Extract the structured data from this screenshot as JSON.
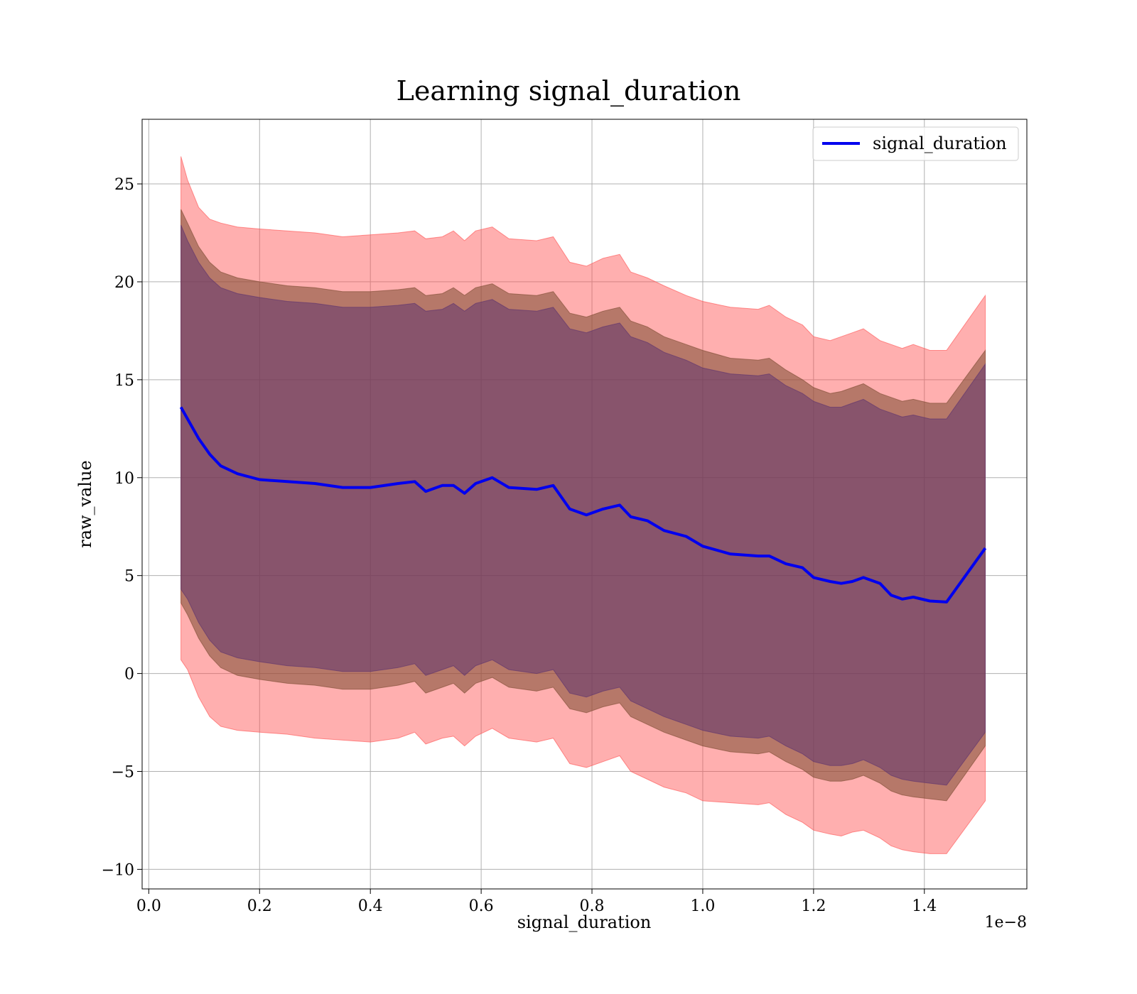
{
  "chart_data": {
    "type": "line",
    "title": "Learning signal_duration",
    "xlabel": "signal_duration",
    "ylabel": "raw_value",
    "x_offset_label": "1e−8",
    "xlim": [
      -0.012,
      1.585
    ],
    "ylim": [
      -11,
      28.3
    ],
    "x_ticks": [
      0.0,
      0.2,
      0.4,
      0.6,
      0.8,
      1.0,
      1.2,
      1.4
    ],
    "x_tick_labels": [
      "0.0",
      "0.2",
      "0.4",
      "0.6",
      "0.8",
      "1.0",
      "1.2",
      "1.4"
    ],
    "y_ticks": [
      -10,
      -5,
      0,
      5,
      10,
      15,
      20,
      25
    ],
    "y_tick_labels": [
      "−10",
      "−5",
      "0",
      "5",
      "10",
      "15",
      "20",
      "25"
    ],
    "grid": true,
    "legend": {
      "placement": "top-right"
    },
    "x": [
      0.058,
      0.07,
      0.09,
      0.11,
      0.13,
      0.16,
      0.2,
      0.25,
      0.3,
      0.35,
      0.4,
      0.45,
      0.48,
      0.5,
      0.53,
      0.55,
      0.57,
      0.59,
      0.62,
      0.65,
      0.7,
      0.73,
      0.76,
      0.79,
      0.82,
      0.85,
      0.87,
      0.9,
      0.93,
      0.97,
      1.0,
      1.05,
      1.1,
      1.12,
      1.15,
      1.18,
      1.2,
      1.23,
      1.25,
      1.27,
      1.29,
      1.32,
      1.34,
      1.36,
      1.38,
      1.41,
      1.44,
      1.51
    ],
    "series": [
      {
        "name": "signal_duration",
        "color": "#0000ee",
        "values": [
          13.6,
          13.0,
          12.0,
          11.2,
          10.6,
          10.2,
          9.9,
          9.8,
          9.7,
          9.5,
          9.5,
          9.7,
          9.8,
          9.3,
          9.6,
          9.6,
          9.2,
          9.7,
          10.0,
          9.5,
          9.4,
          9.6,
          8.4,
          8.1,
          8.4,
          8.6,
          8.0,
          7.8,
          7.3,
          7.0,
          6.5,
          6.1,
          6.0,
          6.0,
          5.6,
          5.4,
          4.9,
          4.7,
          4.6,
          4.7,
          4.9,
          4.6,
          4.0,
          3.8,
          3.9,
          3.7,
          3.65,
          6.4
        ]
      }
    ],
    "bands": [
      {
        "color": "#ff4d4d",
        "opacity": 0.45,
        "upper": [
          26.4,
          25.2,
          23.8,
          23.2,
          23.0,
          22.8,
          22.7,
          22.6,
          22.5,
          22.3,
          22.4,
          22.5,
          22.6,
          22.2,
          22.3,
          22.6,
          22.1,
          22.6,
          22.8,
          22.2,
          22.1,
          22.3,
          21.0,
          20.8,
          21.2,
          21.4,
          20.5,
          20.2,
          19.8,
          19.3,
          19.0,
          18.7,
          18.6,
          18.8,
          18.2,
          17.8,
          17.2,
          17.0,
          17.2,
          17.4,
          17.6,
          17.0,
          16.8,
          16.6,
          16.8,
          16.5,
          16.5,
          19.3
        ],
        "lower": [
          0.7,
          0.2,
          -1.2,
          -2.2,
          -2.7,
          -2.9,
          -3.0,
          -3.1,
          -3.3,
          -3.4,
          -3.5,
          -3.3,
          -3.0,
          -3.6,
          -3.3,
          -3.2,
          -3.7,
          -3.2,
          -2.8,
          -3.3,
          -3.5,
          -3.3,
          -4.6,
          -4.8,
          -4.5,
          -4.2,
          -5.0,
          -5.4,
          -5.8,
          -6.1,
          -6.5,
          -6.6,
          -6.7,
          -6.6,
          -7.2,
          -7.6,
          -8.0,
          -8.2,
          -8.3,
          -8.1,
          -8.0,
          -8.4,
          -8.8,
          -9.0,
          -9.1,
          -9.2,
          -9.2,
          -6.5
        ]
      },
      {
        "color": "#7a4a30",
        "opacity": 0.55,
        "upper": [
          23.7,
          23.0,
          21.8,
          21.0,
          20.5,
          20.2,
          20.0,
          19.8,
          19.7,
          19.5,
          19.5,
          19.6,
          19.7,
          19.3,
          19.4,
          19.7,
          19.3,
          19.7,
          19.9,
          19.4,
          19.3,
          19.5,
          18.4,
          18.2,
          18.5,
          18.7,
          18.0,
          17.7,
          17.2,
          16.8,
          16.5,
          16.1,
          16.0,
          16.1,
          15.5,
          15.0,
          14.6,
          14.3,
          14.4,
          14.6,
          14.8,
          14.3,
          14.1,
          13.9,
          14.0,
          13.8,
          13.8,
          16.5
        ],
        "lower": [
          3.6,
          3.0,
          1.8,
          0.9,
          0.3,
          -0.1,
          -0.3,
          -0.5,
          -0.6,
          -0.8,
          -0.8,
          -0.6,
          -0.4,
          -1.0,
          -0.7,
          -0.5,
          -1.0,
          -0.5,
          -0.2,
          -0.7,
          -0.9,
          -0.7,
          -1.8,
          -2.0,
          -1.7,
          -1.5,
          -2.2,
          -2.6,
          -3.0,
          -3.4,
          -3.7,
          -4.0,
          -4.1,
          -4.0,
          -4.5,
          -4.9,
          -5.3,
          -5.5,
          -5.5,
          -5.4,
          -5.2,
          -5.6,
          -6.0,
          -6.2,
          -6.3,
          -6.4,
          -6.5,
          -3.7
        ]
      },
      {
        "color": "#5a3070",
        "opacity": 0.5,
        "upper": [
          22.9,
          22.1,
          21.0,
          20.2,
          19.7,
          19.4,
          19.2,
          19.0,
          18.9,
          18.7,
          18.7,
          18.8,
          18.9,
          18.5,
          18.6,
          18.9,
          18.5,
          18.9,
          19.1,
          18.6,
          18.5,
          18.7,
          17.6,
          17.4,
          17.7,
          17.9,
          17.2,
          16.9,
          16.4,
          16.0,
          15.6,
          15.3,
          15.2,
          15.3,
          14.7,
          14.3,
          13.9,
          13.6,
          13.6,
          13.8,
          14.0,
          13.5,
          13.3,
          13.1,
          13.2,
          13.0,
          13.0,
          15.8
        ],
        "lower": [
          4.3,
          3.8,
          2.6,
          1.7,
          1.1,
          0.8,
          0.6,
          0.4,
          0.3,
          0.1,
          0.1,
          0.3,
          0.5,
          -0.1,
          0.2,
          0.4,
          -0.1,
          0.4,
          0.7,
          0.2,
          0.0,
          0.2,
          -1.0,
          -1.2,
          -0.9,
          -0.7,
          -1.4,
          -1.8,
          -2.2,
          -2.6,
          -2.9,
          -3.2,
          -3.3,
          -3.2,
          -3.7,
          -4.1,
          -4.5,
          -4.7,
          -4.7,
          -4.6,
          -4.4,
          -4.8,
          -5.2,
          -5.4,
          -5.5,
          -5.6,
          -5.7,
          -3.0
        ]
      }
    ]
  }
}
